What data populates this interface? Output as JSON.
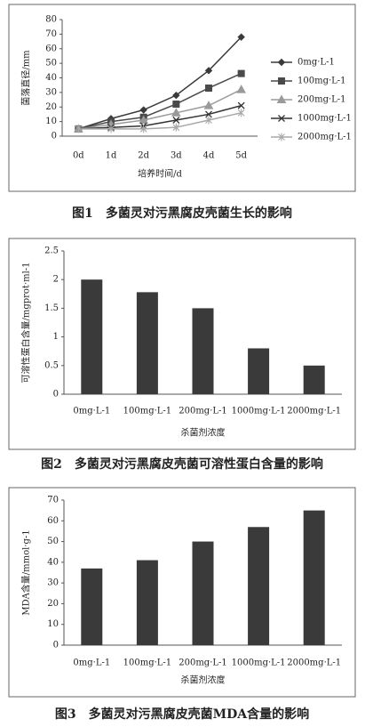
{
  "chart_data": [
    {
      "type": "line",
      "caption": "图1　多菌灵对污黑腐皮壳菌生长的影响",
      "y_label": "菌落直径/mm",
      "x_label": "培养时间/d",
      "categories": [
        "0d",
        "1d",
        "2d",
        "3d",
        "4d",
        "5d"
      ],
      "series": [
        {
          "name": "0mg·L-1",
          "color": "#3a3a3a",
          "marker": "diamond",
          "values": [
            5,
            12,
            18,
            28,
            45,
            68
          ]
        },
        {
          "name": "100mg·L-1",
          "color": "#4a4a4a",
          "marker": "square",
          "values": [
            5,
            10,
            13,
            22,
            33,
            43
          ]
        },
        {
          "name": "200mg·L-1",
          "color": "#9a9a9a",
          "marker": "triangle",
          "values": [
            5,
            8,
            11,
            16,
            21,
            32
          ]
        },
        {
          "name": "1000mg·L-1",
          "color": "#333333",
          "marker": "x",
          "values": [
            5,
            6,
            7,
            11,
            15,
            21
          ]
        },
        {
          "name": "2000mg·L-1",
          "color": "#a8a8a8",
          "marker": "star",
          "values": [
            5,
            5,
            5,
            6,
            11,
            16
          ]
        }
      ],
      "ylim": [
        0,
        80
      ],
      "yticks": [
        0,
        10,
        20,
        30,
        40,
        50,
        60,
        70,
        80
      ],
      "legend": "right"
    },
    {
      "type": "bar",
      "caption": "图2　多菌灵对污黑腐皮壳菌可溶性蛋白含量的影响",
      "y_label": "可溶性蛋白含量/mgprot·ml-1",
      "x_label": "杀菌剂浓度",
      "categories": [
        "0mg·L-1",
        "100mg·L-1",
        "200mg·L-1",
        "1000mg·L-1",
        "2000mg·L-1"
      ],
      "values": [
        2.0,
        1.78,
        1.5,
        0.8,
        0.5
      ],
      "color": "#3a3a3a",
      "ylim": [
        0,
        2.5
      ],
      "yticks": [
        0,
        0.5,
        1,
        1.5,
        2,
        2.5
      ]
    },
    {
      "type": "bar",
      "caption": "图3　多菌灵对污黑腐皮壳菌MDA含量的影响",
      "y_label": "MDA含量/mmol·g-1",
      "x_label": "杀菌剂浓度",
      "categories": [
        "0mg·L-1",
        "100mg·L-1",
        "200mg·L-1",
        "1000mg·L-1",
        "2000mg·L-1"
      ],
      "values": [
        37,
        41,
        50,
        57,
        65
      ],
      "color": "#3a3a3a",
      "ylim": [
        0,
        70
      ],
      "yticks": [
        0,
        10,
        20,
        30,
        40,
        50,
        60,
        70
      ]
    }
  ]
}
